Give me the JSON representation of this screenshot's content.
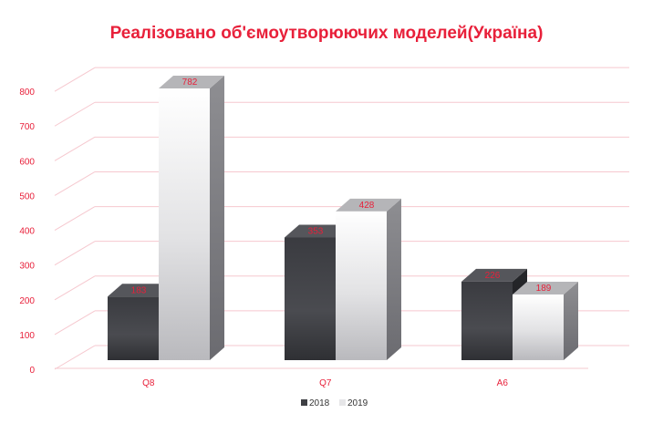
{
  "chart_data": {
    "type": "bar",
    "title": "Реалізовано об'ємоутворюючих моделей(Україна)",
    "categories": [
      "Q8",
      "Q7",
      "A6"
    ],
    "series": [
      {
        "name": "2018",
        "values": [
          183,
          353,
          226
        ]
      },
      {
        "name": "2019",
        "values": [
          782,
          428,
          189
        ]
      }
    ],
    "ylim": [
      0,
      800
    ],
    "yticks": [
      0,
      100,
      200,
      300,
      400,
      500,
      600,
      700,
      800
    ],
    "grid": true,
    "legend_position": "bottom",
    "colors": {
      "title": "#e8203a",
      "labels": "#e8203a",
      "grid": "#f6c8cf",
      "series_2018": "#3e3f44",
      "series_2019": "#e6e6e8"
    }
  }
}
